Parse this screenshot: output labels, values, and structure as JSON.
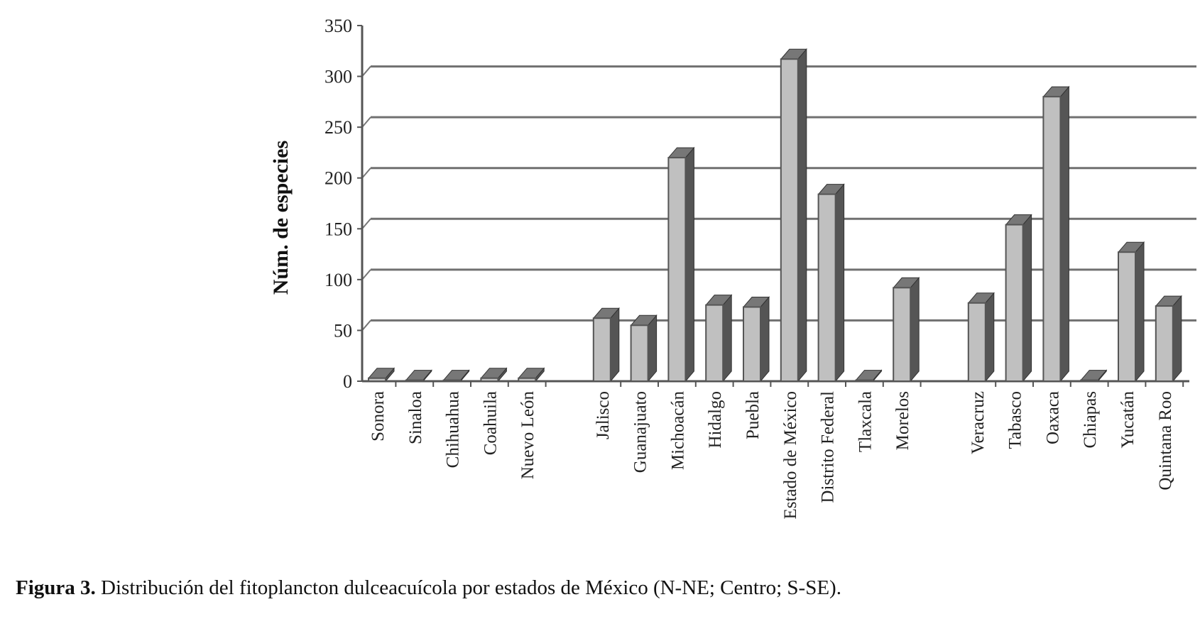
{
  "chart_data": {
    "type": "bar",
    "style": "3d-column",
    "ylabel": "Núm. de especies",
    "xlabel": "",
    "ylim": [
      0,
      350
    ],
    "yticks": [
      0,
      50,
      100,
      150,
      200,
      250,
      300,
      350
    ],
    "grid": true,
    "bar_color": "#c0c0c0",
    "groups": [
      {
        "categories": [
          "Sonora",
          "Sinaloa",
          "Chihuahua",
          "Coahuila",
          "Nuevo León"
        ],
        "values": [
          3,
          1,
          1,
          3,
          3
        ]
      },
      {
        "categories": [
          "Jalisco",
          "Guanajuato",
          "Michoacán",
          "Hidalgo",
          "Puebla",
          "Estado de México",
          "Distrito Federal",
          "Tlaxcala",
          "Morelos"
        ],
        "values": [
          62,
          55,
          220,
          75,
          73,
          317,
          184,
          1,
          92
        ]
      },
      {
        "categories": [
          "Veracruz",
          "Tabasco",
          "Oaxaca",
          "Chiapas",
          "Yucatán",
          "Quintana Roo"
        ],
        "values": [
          77,
          154,
          280,
          1,
          127,
          74
        ]
      }
    ]
  },
  "caption": {
    "label": "Figura 3.",
    "text": " Distribución del fitoplancton dulceacuícola por estados de México (N-NE; Centro; S-SE)."
  }
}
